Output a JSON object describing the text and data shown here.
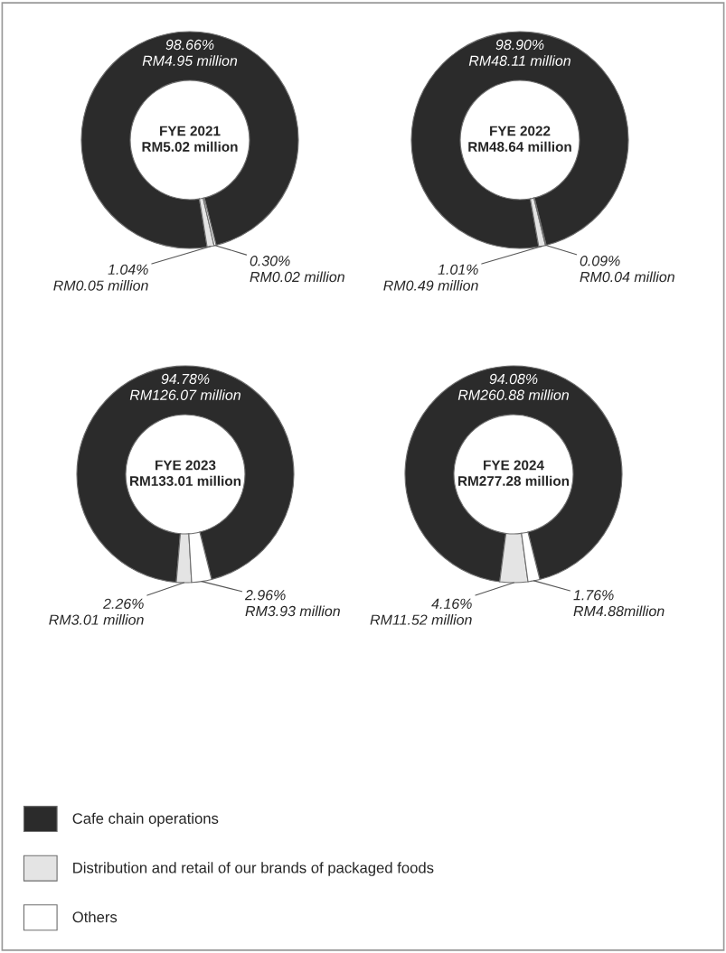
{
  "chart_data": [
    {
      "type": "donut",
      "title": "FYE 2021\nRM5.02 million",
      "values": [
        98.66,
        1.04,
        0.3
      ],
      "colors": [
        "#2b2b2b",
        "#e4e4e4",
        "#ffffff"
      ],
      "value_labels": [
        "98.66%\nRM4.95 million",
        "1.04%\nRM0.05 million",
        "0.30%\nRM0.02 million"
      ]
    },
    {
      "type": "donut",
      "title": "FYE 2022\nRM48.64 million",
      "values": [
        98.9,
        1.01,
        0.09
      ],
      "colors": [
        "#2b2b2b",
        "#e4e4e4",
        "#ffffff"
      ],
      "value_labels": [
        "98.90%\nRM48.11 million",
        "1.01%\nRM0.49 million",
        "0.09%\nRM0.04 million"
      ]
    },
    {
      "type": "donut",
      "title": "FYE 2023\nRM133.01 million",
      "values": [
        94.78,
        2.26,
        2.96
      ],
      "colors": [
        "#2b2b2b",
        "#e4e4e4",
        "#ffffff"
      ],
      "value_labels": [
        "94.78%\nRM126.07 million",
        "2.26%\nRM3.01 million",
        "2.96%\nRM3.93 million"
      ]
    },
    {
      "type": "donut",
      "title": "FYE 2024\nRM277.28 million",
      "categories": [
        "Cafe chain operations",
        "Distribution and retail of our brands of packaged foods",
        "Others"
      ],
      "values": [
        94.08,
        4.16,
        1.76
      ],
      "colors": [
        "#2b2b2b",
        "#e4e4e4",
        "#ffffff"
      ],
      "value_labels": [
        "94.08%\nRM260.88 million",
        "4.16%\nRM11.52 million",
        "1.76%\nRM4.88million"
      ],
      "legend": "bottom"
    }
  ]
}
